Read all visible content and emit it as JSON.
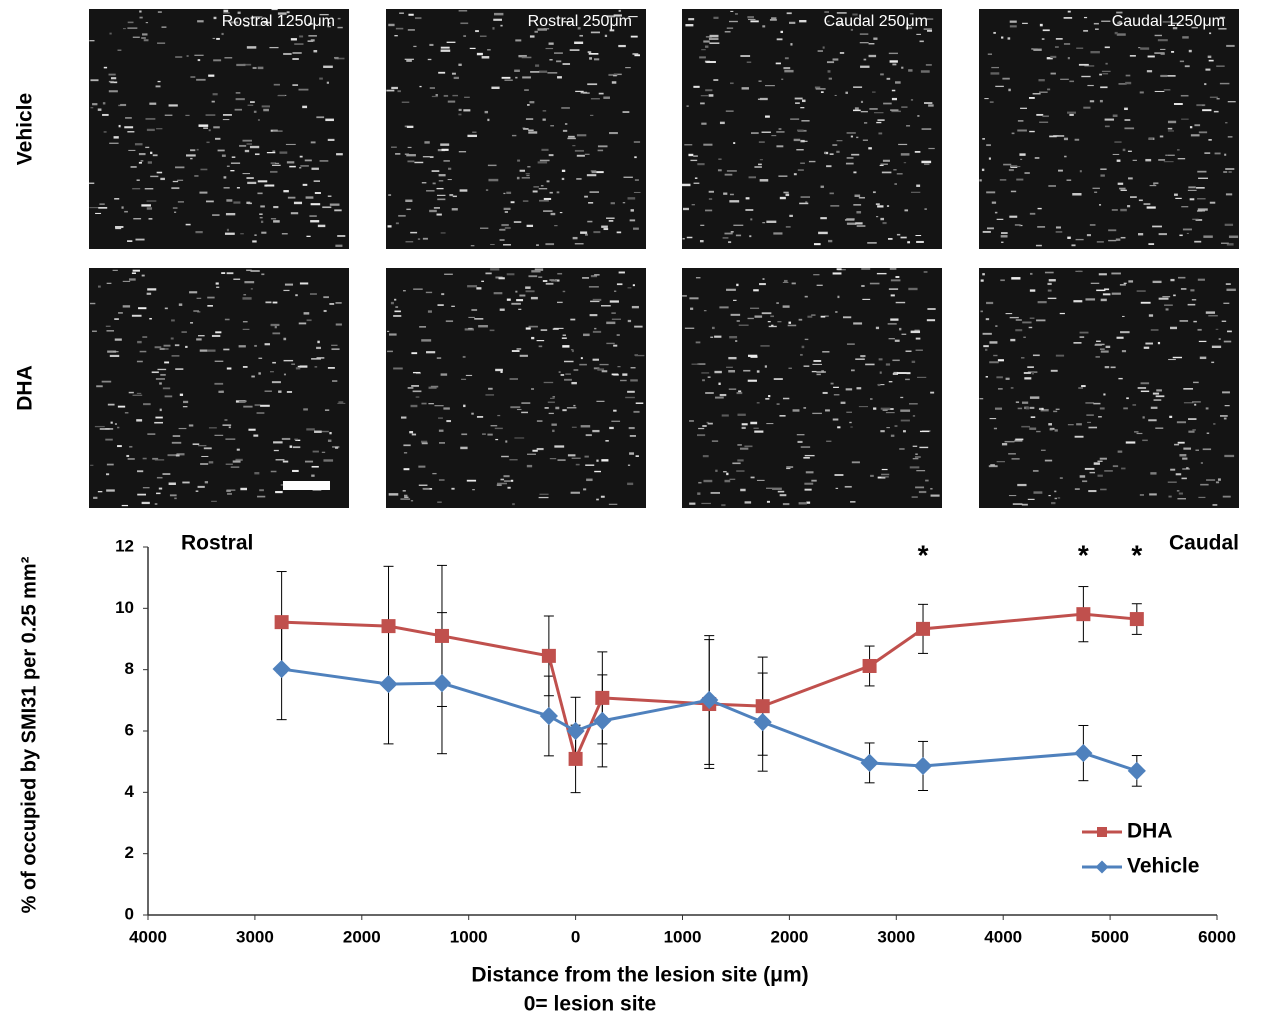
{
  "images": {
    "columns": [
      "Rostral 1250μm",
      "Rostral 250μm",
      "Caudal 250μm",
      "Caudal 1250μm"
    ],
    "rows": [
      "Vehicle",
      "DHA"
    ]
  },
  "chart_data": {
    "type": "line",
    "y_label": "% of occupied by SMI31 per 0.25 mm²",
    "x_label": "Distance from the lesion site (μm)",
    "x_note": "0= lesion site",
    "annotations": [
      {
        "text": "Rostral"
      },
      {
        "text": "Caudal"
      }
    ],
    "significance": [
      {
        "x": 3250,
        "text": "*"
      },
      {
        "x": 4750,
        "text": "*"
      },
      {
        "x": 5250,
        "text": "*"
      }
    ],
    "x": [
      -2750,
      -1750,
      -1250,
      -250,
      0,
      250,
      1250,
      1750,
      2750,
      3250,
      4750,
      5250
    ],
    "series": [
      {
        "name": "DHA",
        "color": "#c0504d",
        "marker": "square",
        "values": [
          9.55,
          9.42,
          9.1,
          8.45,
          5.09,
          7.08,
          6.88,
          6.81,
          8.12,
          9.33,
          9.81,
          9.65
        ],
        "errors": [
          1.65,
          1.95,
          2.3,
          1.3,
          1.1,
          1.5,
          2.1,
          1.6,
          0.65,
          0.8,
          0.9,
          0.5
        ]
      },
      {
        "name": "Vehicle",
        "color": "#4f81bd",
        "marker": "diamond",
        "values": [
          8.02,
          7.53,
          7.56,
          6.49,
          6.0,
          6.33,
          7.01,
          6.29,
          4.96,
          4.86,
          5.28,
          4.7
        ],
        "errors": [
          1.65,
          1.95,
          2.3,
          1.3,
          1.1,
          1.5,
          2.1,
          1.6,
          0.65,
          0.8,
          0.9,
          0.5
        ]
      }
    ],
    "xlim": [
      -4000,
      6000
    ],
    "xticks": [
      {
        "value": -4000,
        "label": "4000"
      },
      {
        "value": -3000,
        "label": "3000"
      },
      {
        "value": -2000,
        "label": "2000"
      },
      {
        "value": -1000,
        "label": "1000"
      },
      0,
      1000,
      2000,
      3000,
      4000,
      5000,
      6000
    ],
    "ylim": [
      0,
      12
    ],
    "yticks": [
      0,
      2,
      4,
      6,
      8,
      10,
      12
    ],
    "grid": false,
    "legend": "lower right"
  }
}
